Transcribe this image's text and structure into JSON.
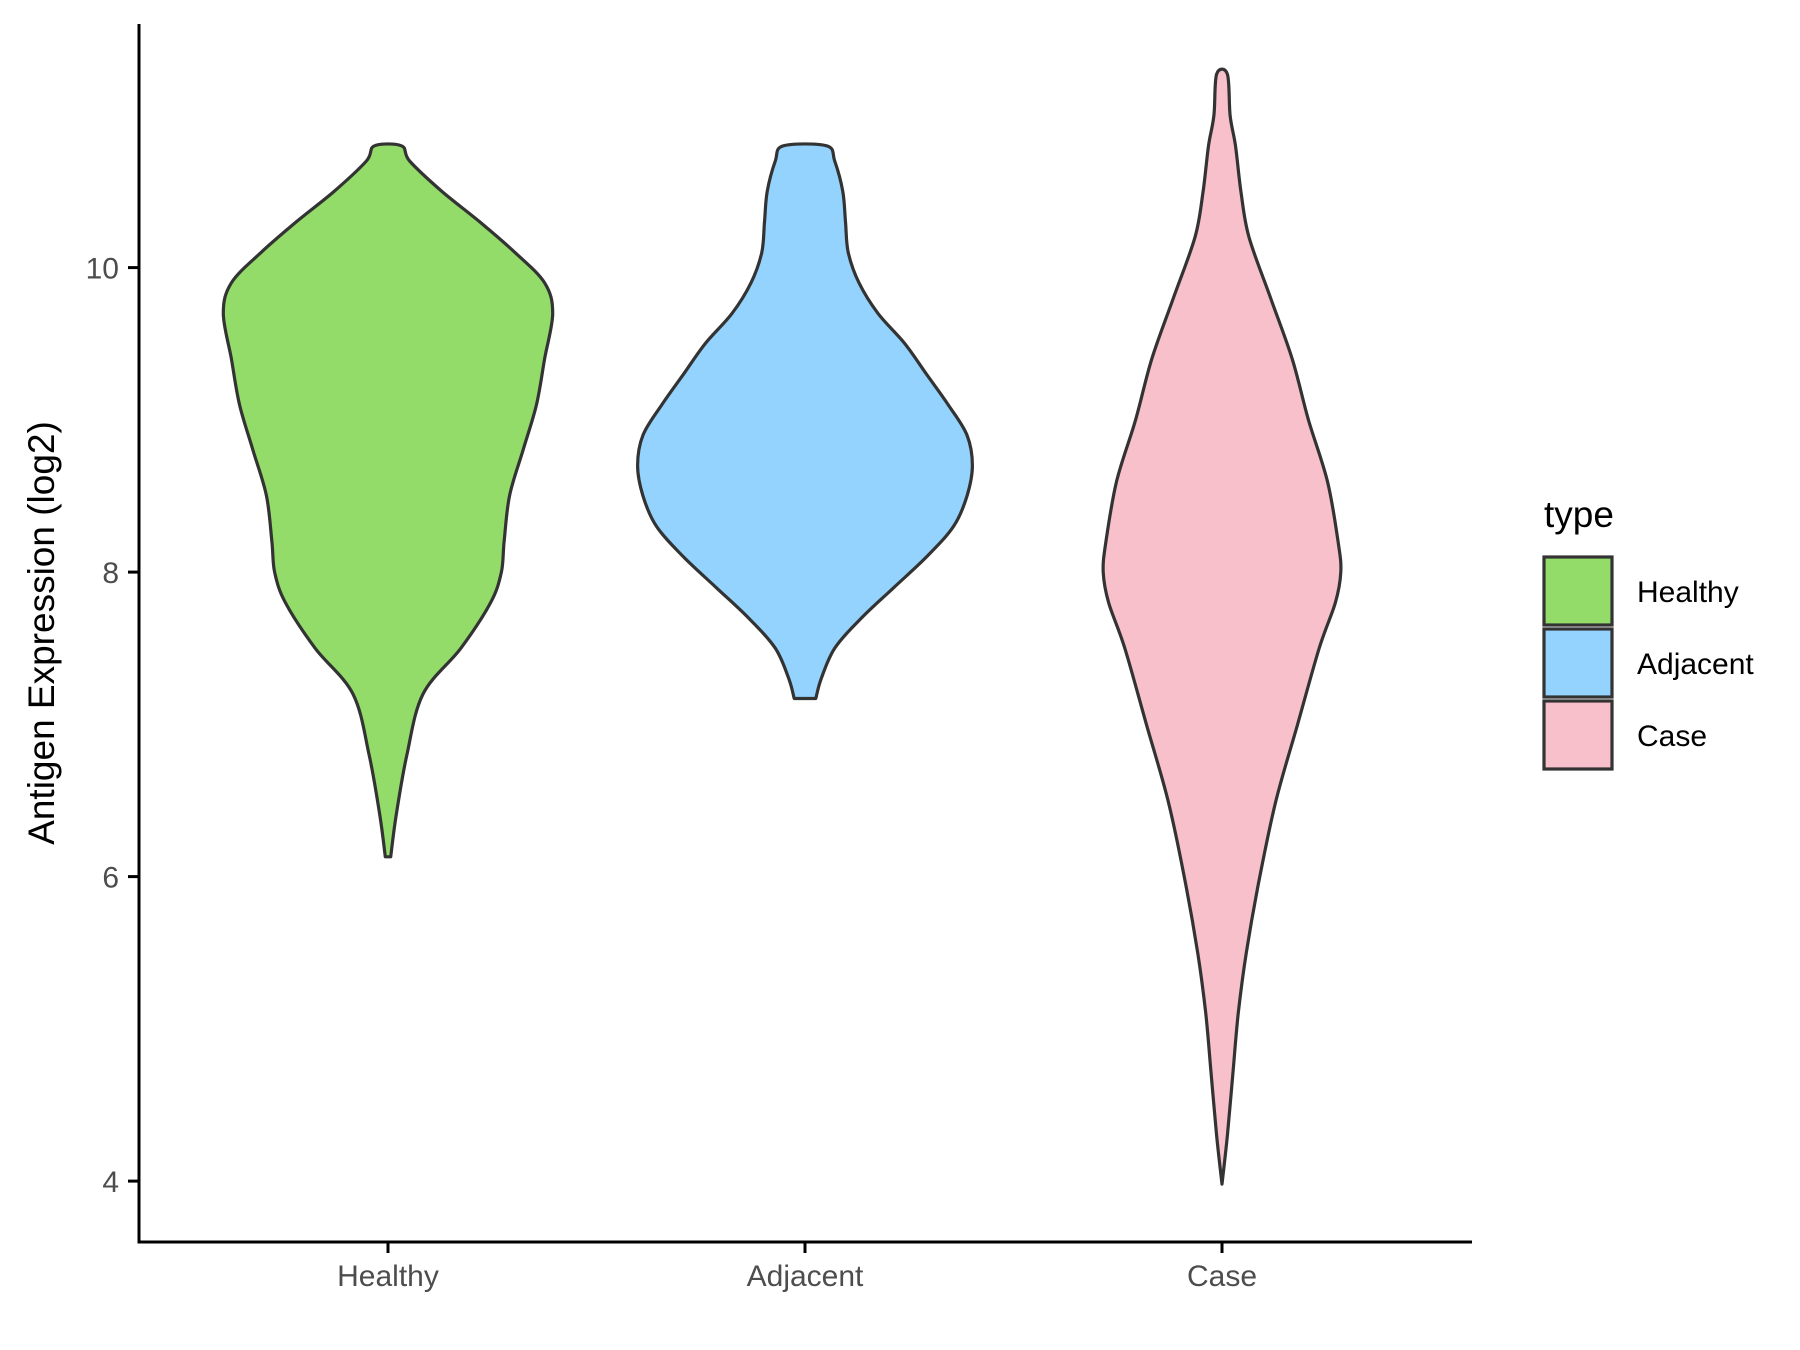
{
  "chart_data": {
    "type": "violin",
    "title": "",
    "xlabel": "",
    "ylabel": "Antigen Expression (log2)",
    "ylim": [
      3.6,
      11.6
    ],
    "yticks": [
      4,
      6,
      8,
      10
    ],
    "grid": false,
    "legend": {
      "title": "type",
      "position": "right",
      "entries": [
        "Healthy",
        "Adjacent",
        "Case"
      ]
    },
    "categories": [
      "Healthy",
      "Adjacent",
      "Case"
    ],
    "series": [
      {
        "name": "Healthy",
        "color": "#93dc69",
        "min": 6.13,
        "max": 10.8,
        "profile": [
          [
            6.13,
            0.01
          ],
          [
            6.4,
            0.03
          ],
          [
            6.8,
            0.07
          ],
          [
            7.2,
            0.13
          ],
          [
            7.5,
            0.27
          ],
          [
            7.8,
            0.38
          ],
          [
            8.0,
            0.42
          ],
          [
            8.2,
            0.43
          ],
          [
            8.5,
            0.45
          ],
          [
            8.8,
            0.5
          ],
          [
            9.1,
            0.55
          ],
          [
            9.4,
            0.58
          ],
          [
            9.7,
            0.61
          ],
          [
            9.9,
            0.58
          ],
          [
            10.1,
            0.47
          ],
          [
            10.3,
            0.34
          ],
          [
            10.5,
            0.2
          ],
          [
            10.7,
            0.08
          ],
          [
            10.8,
            0.05
          ]
        ]
      },
      {
        "name": "Adjacent",
        "color": "#93d3fe",
        "min": 7.17,
        "max": 10.8,
        "profile": [
          [
            7.17,
            0.04
          ],
          [
            7.3,
            0.06
          ],
          [
            7.5,
            0.11
          ],
          [
            7.7,
            0.21
          ],
          [
            7.9,
            0.33
          ],
          [
            8.1,
            0.45
          ],
          [
            8.3,
            0.55
          ],
          [
            8.5,
            0.6
          ],
          [
            8.7,
            0.62
          ],
          [
            8.9,
            0.6
          ],
          [
            9.1,
            0.53
          ],
          [
            9.3,
            0.45
          ],
          [
            9.5,
            0.37
          ],
          [
            9.7,
            0.27
          ],
          [
            9.9,
            0.2
          ],
          [
            10.1,
            0.16
          ],
          [
            10.3,
            0.15
          ],
          [
            10.5,
            0.14
          ],
          [
            10.7,
            0.11
          ],
          [
            10.8,
            0.08
          ]
        ]
      },
      {
        "name": "Case",
        "color": "#f7c0cb",
        "min": 3.98,
        "max": 11.27,
        "profile": [
          [
            3.98,
            0.0
          ],
          [
            4.3,
            0.02
          ],
          [
            4.7,
            0.04
          ],
          [
            5.1,
            0.06
          ],
          [
            5.5,
            0.09
          ],
          [
            6.0,
            0.14
          ],
          [
            6.5,
            0.2
          ],
          [
            7.0,
            0.28
          ],
          [
            7.5,
            0.36
          ],
          [
            7.8,
            0.42
          ],
          [
            8.0,
            0.44
          ],
          [
            8.2,
            0.43
          ],
          [
            8.6,
            0.39
          ],
          [
            9.0,
            0.32
          ],
          [
            9.4,
            0.26
          ],
          [
            9.8,
            0.18
          ],
          [
            10.2,
            0.1
          ],
          [
            10.5,
            0.07
          ],
          [
            10.8,
            0.05
          ],
          [
            11.0,
            0.03
          ],
          [
            11.27,
            0.02
          ]
        ]
      }
    ]
  }
}
